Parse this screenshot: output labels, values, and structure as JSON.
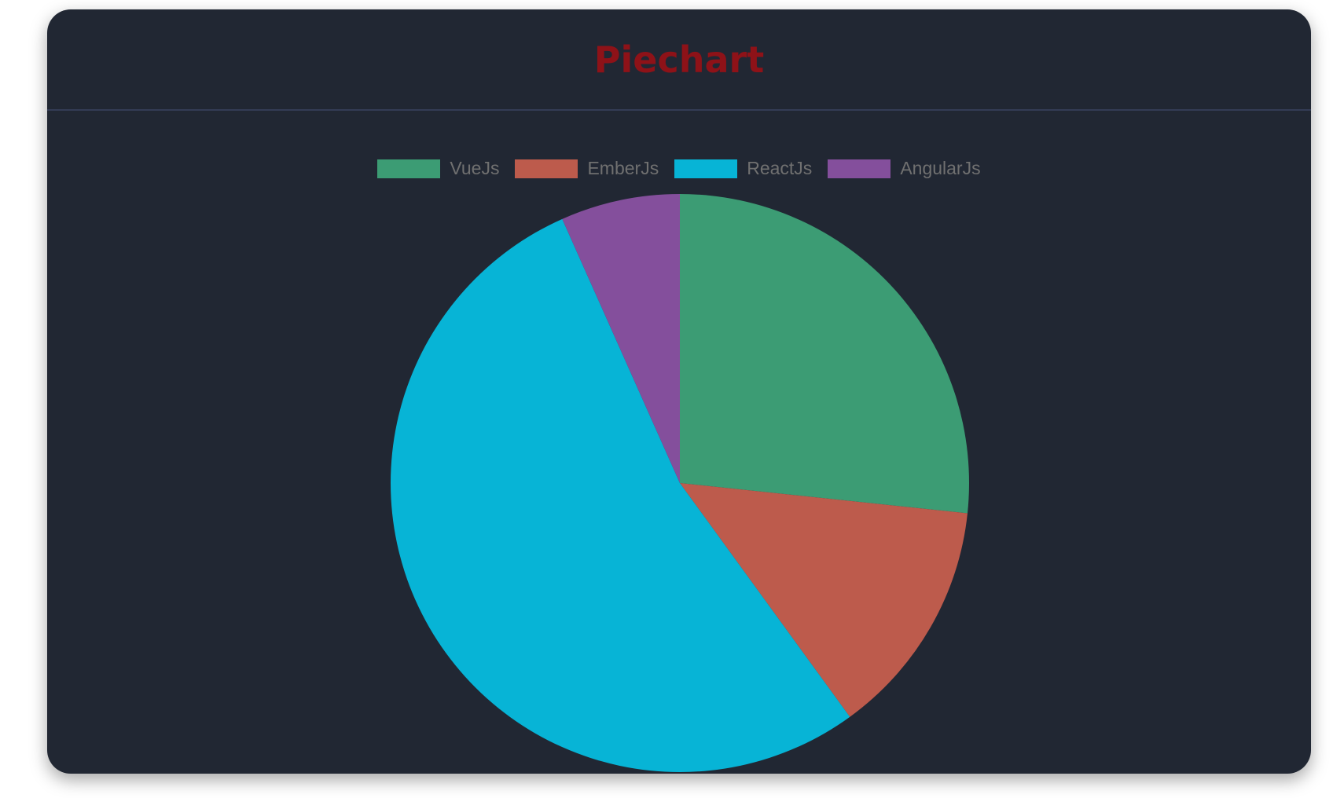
{
  "chart_data": {
    "type": "pie",
    "title": "Piechart",
    "categories": [
      "VueJs",
      "EmberJs",
      "ReactJs",
      "AngularJs"
    ],
    "values": [
      40,
      20,
      80,
      10
    ],
    "colors": [
      "#3c9c74",
      "#bd5b4c",
      "#07b4d6",
      "#844f9c"
    ],
    "legend_position": "top"
  },
  "theme": {
    "background": "#212733",
    "title_color": "#8e1218"
  }
}
